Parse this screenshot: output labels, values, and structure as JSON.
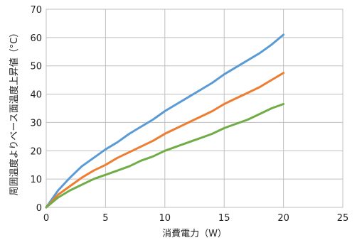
{
  "chart_data": {
    "type": "line",
    "xlabel": "消費電力（W）",
    "ylabel": "周囲温度よりベース面温度上昇値（°C）",
    "xlim": [
      0,
      25
    ],
    "ylim": [
      0,
      70
    ],
    "x_ticks": [
      "0",
      "5",
      "10",
      "15",
      "20",
      "25"
    ],
    "y_ticks": [
      "0",
      "10",
      "20",
      "30",
      "40",
      "50",
      "60",
      "70"
    ],
    "grid": true,
    "series": [
      {
        "color": "#5b9bd5",
        "points": [
          [
            0,
            0
          ],
          [
            1,
            6
          ],
          [
            2,
            10.5
          ],
          [
            3,
            14.5
          ],
          [
            4,
            17.5
          ],
          [
            5,
            20.5
          ],
          [
            6,
            23
          ],
          [
            7,
            26
          ],
          [
            8,
            28.5
          ],
          [
            9,
            31
          ],
          [
            10,
            34
          ],
          [
            11,
            36.5
          ],
          [
            12,
            39
          ],
          [
            13,
            41.5
          ],
          [
            14,
            44
          ],
          [
            15,
            47
          ],
          [
            16,
            49.5
          ],
          [
            17,
            52
          ],
          [
            18,
            54.5
          ],
          [
            19,
            57.5
          ],
          [
            20,
            61
          ]
        ]
      },
      {
        "color": "#ed7d31",
        "points": [
          [
            0,
            0
          ],
          [
            1,
            4.5
          ],
          [
            2,
            7.5
          ],
          [
            3,
            10.5
          ],
          [
            4,
            13
          ],
          [
            5,
            15
          ],
          [
            6,
            17.5
          ],
          [
            7,
            19.5
          ],
          [
            8,
            21.5
          ],
          [
            9,
            23.5
          ],
          [
            10,
            26
          ],
          [
            11,
            28
          ],
          [
            12,
            30
          ],
          [
            13,
            32
          ],
          [
            14,
            34
          ],
          [
            15,
            36.5
          ],
          [
            16,
            38.5
          ],
          [
            17,
            40.5
          ],
          [
            18,
            42.5
          ],
          [
            19,
            45
          ],
          [
            20,
            47.5
          ]
        ]
      },
      {
        "color": "#70ad47",
        "points": [
          [
            0,
            0
          ],
          [
            1,
            3.5
          ],
          [
            2,
            6
          ],
          [
            3,
            8
          ],
          [
            4,
            10
          ],
          [
            5,
            11.5
          ],
          [
            6,
            13
          ],
          [
            7,
            14.5
          ],
          [
            8,
            16.5
          ],
          [
            9,
            18
          ],
          [
            10,
            20
          ],
          [
            11,
            21.5
          ],
          [
            12,
            23
          ],
          [
            13,
            24.5
          ],
          [
            14,
            26
          ],
          [
            15,
            28
          ],
          [
            16,
            29.5
          ],
          [
            17,
            31
          ],
          [
            18,
            33
          ],
          [
            19,
            35
          ],
          [
            20,
            36.5
          ]
        ]
      }
    ]
  }
}
